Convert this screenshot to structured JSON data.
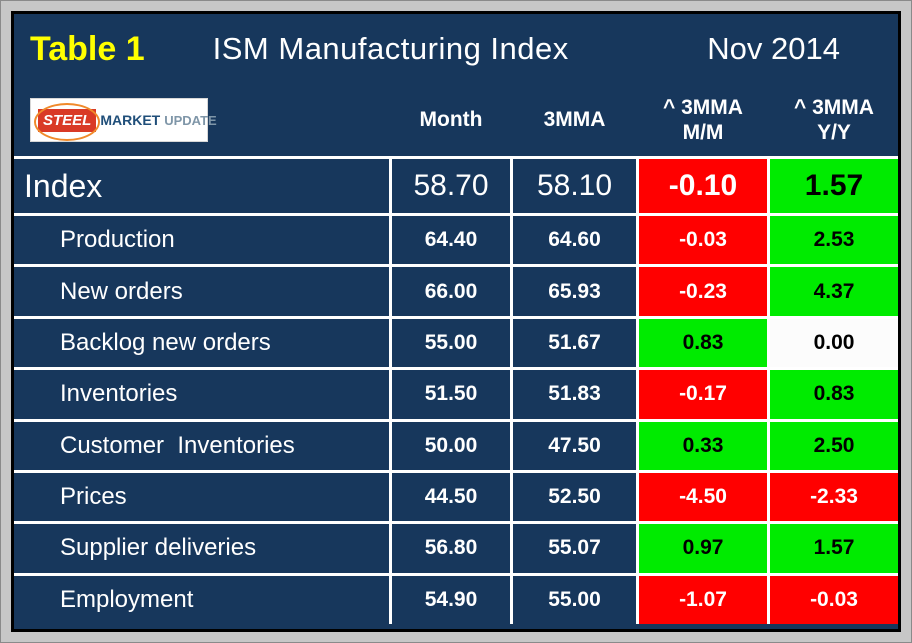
{
  "header": {
    "table_label": "Table 1",
    "main_title": "ISM Manufacturing Index",
    "date": "Nov 2014"
  },
  "logo": {
    "steel": "STEEL",
    "market": "MARKET",
    "update": "UPDATE"
  },
  "columns": {
    "month": "Month",
    "mma": "3MMA",
    "mm": {
      "line1": "^ 3MMA",
      "line2": "M/M"
    },
    "yy": {
      "line1": "^ 3MMA",
      "line2": "Y/Y"
    }
  },
  "colors": {
    "navy": "#17375C",
    "red": "#FF0000",
    "green": "#00EB00",
    "yellow": "#FFFF00",
    "frame_gray": "#C7C7C7"
  },
  "chart_data": {
    "type": "table",
    "title": "ISM Manufacturing Index",
    "subtitle": "Nov 2014",
    "columns": [
      "",
      "Month",
      "3MMA",
      "^ 3MMA M/M",
      "^ 3MMA Y/Y"
    ],
    "rows": [
      {
        "label": "Index",
        "month": "58.70",
        "mma": "58.10",
        "mm": "-0.10",
        "mm_color": "red",
        "yy": "1.57",
        "yy_color": "green"
      },
      {
        "label": "Production",
        "month": "64.40",
        "mma": "64.60",
        "mm": "-0.03",
        "mm_color": "red",
        "yy": "2.53",
        "yy_color": "green"
      },
      {
        "label": "New orders",
        "month": "66.00",
        "mma": "65.93",
        "mm": "-0.23",
        "mm_color": "red",
        "yy": "4.37",
        "yy_color": "green"
      },
      {
        "label": "Backlog new orders",
        "month": "55.00",
        "mma": "51.67",
        "mm": "0.83",
        "mm_color": "green",
        "yy": "0.00",
        "yy_color": "white"
      },
      {
        "label": "Inventories",
        "month": "51.50",
        "mma": "51.83",
        "mm": "-0.17",
        "mm_color": "red",
        "yy": "0.83",
        "yy_color": "green"
      },
      {
        "label": "Customer  Inventories",
        "month": "50.00",
        "mma": "47.50",
        "mm": "0.33",
        "mm_color": "green",
        "yy": "2.50",
        "yy_color": "green"
      },
      {
        "label": "Prices",
        "month": "44.50",
        "mma": "52.50",
        "mm": "-4.50",
        "mm_color": "red",
        "yy": "-2.33",
        "yy_color": "red"
      },
      {
        "label": "Supplier deliveries",
        "month": "56.80",
        "mma": "55.07",
        "mm": "0.97",
        "mm_color": "green",
        "yy": "1.57",
        "yy_color": "green"
      },
      {
        "label": "Employment",
        "month": "54.90",
        "mma": "55.00",
        "mm": "-1.07",
        "mm_color": "red",
        "yy": "-0.03",
        "yy_color": "red"
      }
    ]
  }
}
